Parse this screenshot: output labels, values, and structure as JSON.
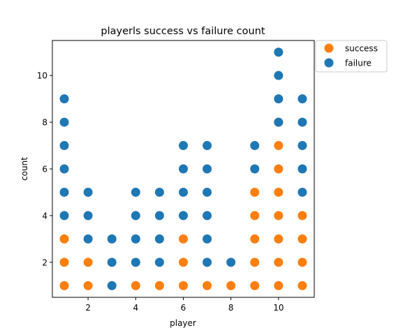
{
  "chart_data": {
    "type": "scatter",
    "title": "playerls success vs failure count",
    "xlabel": "player",
    "ylabel": "count",
    "xlim": [
      0.5,
      11.5
    ],
    "ylim": [
      0.5,
      11.5
    ],
    "xticks": [
      2,
      4,
      6,
      8,
      10
    ],
    "yticks": [
      2,
      4,
      6,
      8,
      10
    ],
    "grid": false,
    "legend_position": "outside top-right",
    "series": [
      {
        "name": "success",
        "color": "#ff7f0e",
        "points": [
          [
            1,
            1
          ],
          [
            1,
            2
          ],
          [
            1,
            3
          ],
          [
            2,
            1
          ],
          [
            2,
            2
          ],
          [
            4,
            1
          ],
          [
            5,
            1
          ],
          [
            6,
            1
          ],
          [
            6,
            2
          ],
          [
            6,
            3
          ],
          [
            7,
            1
          ],
          [
            8,
            1
          ],
          [
            9,
            1
          ],
          [
            9,
            2
          ],
          [
            9,
            3
          ],
          [
            9,
            4
          ],
          [
            9,
            5
          ],
          [
            10,
            1
          ],
          [
            10,
            2
          ],
          [
            10,
            3
          ],
          [
            10,
            4
          ],
          [
            10,
            5
          ],
          [
            10,
            6
          ],
          [
            10,
            7
          ],
          [
            10,
            8
          ],
          [
            11,
            1
          ],
          [
            11,
            2
          ],
          [
            11,
            3
          ],
          [
            11,
            4
          ]
        ]
      },
      {
        "name": "failure",
        "color": "#1f77b4",
        "points": [
          [
            1,
            4
          ],
          [
            1,
            5
          ],
          [
            1,
            6
          ],
          [
            1,
            7
          ],
          [
            1,
            8
          ],
          [
            1,
            9
          ],
          [
            2,
            3
          ],
          [
            2,
            4
          ],
          [
            2,
            5
          ],
          [
            3,
            1
          ],
          [
            3,
            2
          ],
          [
            3,
            3
          ],
          [
            4,
            2
          ],
          [
            4,
            3
          ],
          [
            4,
            4
          ],
          [
            4,
            5
          ],
          [
            5,
            2
          ],
          [
            5,
            3
          ],
          [
            5,
            4
          ],
          [
            5,
            5
          ],
          [
            6,
            4
          ],
          [
            6,
            5
          ],
          [
            6,
            6
          ],
          [
            6,
            7
          ],
          [
            7,
            2
          ],
          [
            7,
            3
          ],
          [
            7,
            4
          ],
          [
            7,
            5
          ],
          [
            7,
            6
          ],
          [
            7,
            7
          ],
          [
            8,
            2
          ],
          [
            9,
            6
          ],
          [
            9,
            7
          ],
          [
            10,
            8
          ],
          [
            10,
            9
          ],
          [
            10,
            10
          ],
          [
            10,
            11
          ],
          [
            11,
            5
          ],
          [
            11,
            6
          ],
          [
            11,
            7
          ],
          [
            11,
            8
          ],
          [
            11,
            9
          ]
        ]
      }
    ]
  }
}
